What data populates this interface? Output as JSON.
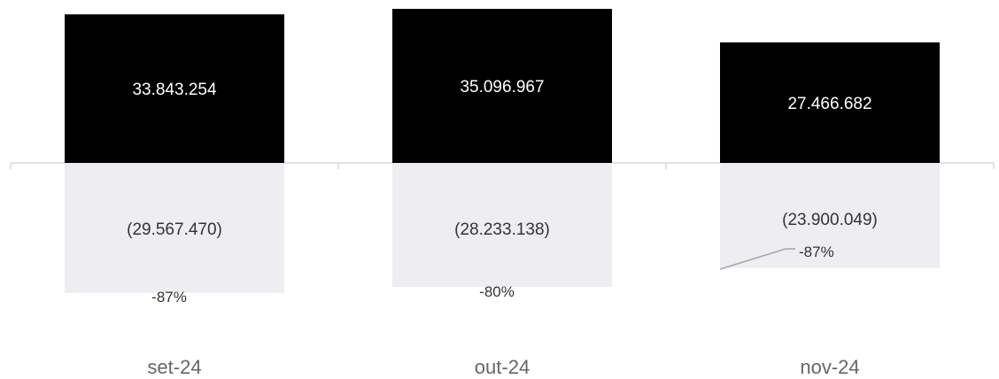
{
  "chart_data": {
    "type": "bar",
    "categories": [
      "set-24",
      "out-24",
      "nov-24"
    ],
    "series": [
      {
        "values": [
          33843254,
          35096967,
          27466682
        ],
        "labels": [
          "33.843.254",
          "35.096.967",
          "27.466.682"
        ],
        "color": "#000000"
      },
      {
        "values": [
          -29567470,
          -28233138,
          -23900049
        ],
        "labels": [
          "(29.567.470)",
          "(28.233.138)",
          "(23.900.049)"
        ],
        "color": "#EEEDF2"
      }
    ],
    "annotations": [
      "-87%",
      "-80%",
      "-87%"
    ],
    "axis_color": "#D9D9D9",
    "grid": false,
    "legend": "none"
  }
}
